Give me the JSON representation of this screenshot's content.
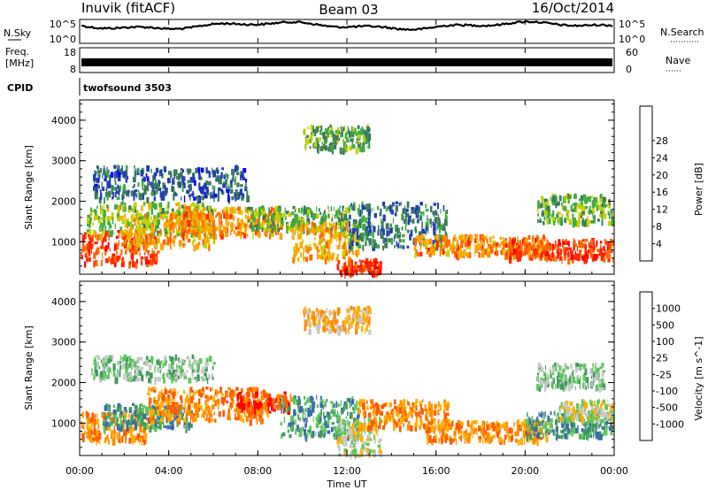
{
  "header": {
    "station": "Inuvik (fitACF)",
    "beam": "Beam 03",
    "date": "16/Oct/2014"
  },
  "top_strip": {
    "nsky_label": "N.Sky",
    "nsky_ticks": [
      "10^5",
      "10^0"
    ],
    "nsearch_label": "N.Search",
    "nsearch_ticks": [
      "10^5",
      "10^0"
    ],
    "freq_label_1": "Freq.",
    "freq_label_2": "[MHz]",
    "freq_ticks": [
      "18",
      "8"
    ],
    "nave_label": "Nave",
    "nave_ticks": [
      "60",
      "0"
    ],
    "cpid_label": "CPID",
    "cpid_value": "twofsound 3503"
  },
  "x_axis": {
    "label": "Time UT",
    "ticks": [
      "00:00",
      "04:00",
      "08:00",
      "12:00",
      "16:00",
      "20:00",
      "00:00"
    ],
    "range_hours": [
      0,
      24
    ]
  },
  "colors": {
    "power_scale": [
      "#0000ff",
      "#1f3faf",
      "#3a7a5a",
      "#3fae3f",
      "#c8d000",
      "#ffa500",
      "#ff6a00",
      "#ff2a00",
      "#ff0000"
    ],
    "velocity_scale": [
      "#ff0000",
      "#ff5a00",
      "#ff8c00",
      "#ffb000",
      "#c8c8c8",
      "#5fc85f",
      "#3f9a5a",
      "#3a6ab0",
      "#1f3fc8"
    ]
  },
  "chart_data": [
    {
      "type": "heatmap",
      "panel": "power",
      "ylabel": "Slant Range [km]",
      "yticks": [
        1000,
        2000,
        3000,
        4000
      ],
      "ylim": [
        200,
        4500
      ],
      "xlim": [
        0,
        24
      ],
      "colorbar_label": "Power [dB]",
      "colorbar_ticks": [
        "4",
        "8",
        "12",
        "16",
        "20",
        "24",
        "28"
      ],
      "colorbar_range": [
        0,
        32
      ],
      "bands": [
        {
          "t0": 0.0,
          "t1": 3.5,
          "r0": 500,
          "r1": 1300,
          "level": 27
        },
        {
          "t0": 0.3,
          "t1": 6.0,
          "r0": 1200,
          "r1": 2000,
          "level": 14
        },
        {
          "t0": 2.0,
          "t1": 6.0,
          "r0": 900,
          "r1": 1700,
          "level": 20
        },
        {
          "t0": 4.5,
          "t1": 9.0,
          "r0": 1200,
          "r1": 1900,
          "level": 22
        },
        {
          "t0": 7.5,
          "t1": 12.0,
          "r0": 1300,
          "r1": 1900,
          "level": 12
        },
        {
          "t0": 9.5,
          "t1": 12.5,
          "r0": 600,
          "r1": 1500,
          "level": 20
        },
        {
          "t0": 11.5,
          "t1": 13.5,
          "r0": 200,
          "r1": 600,
          "level": 28
        },
        {
          "t0": 12.0,
          "t1": 16.5,
          "r0": 900,
          "r1": 2000,
          "level": 8
        },
        {
          "t0": 15.0,
          "t1": 21.0,
          "r0": 700,
          "r1": 1200,
          "level": 22
        },
        {
          "t0": 19.0,
          "t1": 24.0,
          "r0": 600,
          "r1": 1100,
          "level": 27
        },
        {
          "t0": 20.5,
          "t1": 24.0,
          "r0": 1500,
          "r1": 2200,
          "level": 12
        },
        {
          "t0": 0.5,
          "t1": 7.5,
          "r0": 2100,
          "r1": 2900,
          "level": 6
        },
        {
          "t0": 10.0,
          "t1": 13.0,
          "r0": 3300,
          "r1": 3900,
          "level": 12
        }
      ]
    },
    {
      "type": "heatmap",
      "panel": "velocity",
      "ylabel": "Slant Range [km]",
      "yticks": [
        1000,
        2000,
        3000,
        4000
      ],
      "ylim": [
        200,
        4500
      ],
      "xlim": [
        0,
        24
      ],
      "colorbar_label": "Velocity [m s^-1]",
      "colorbar_ticks": [
        "-1000",
        "-500",
        "-100",
        "-25",
        "25",
        "100",
        "500",
        "1000"
      ],
      "bands": [
        {
          "t0": 0.0,
          "t1": 3.0,
          "r0": 600,
          "r1": 1300,
          "level": 2
        },
        {
          "t0": 1.0,
          "t1": 5.0,
          "r0": 900,
          "r1": 1500,
          "level": 6
        },
        {
          "t0": 3.0,
          "t1": 8.5,
          "r0": 1100,
          "r1": 1900,
          "level": 2
        },
        {
          "t0": 7.0,
          "t1": 9.5,
          "r0": 1300,
          "r1": 1800,
          "level": 1
        },
        {
          "t0": 9.0,
          "t1": 12.5,
          "r0": 700,
          "r1": 1700,
          "level": 6
        },
        {
          "t0": 11.5,
          "t1": 13.5,
          "r0": 200,
          "r1": 1200,
          "level": 4
        },
        {
          "t0": 12.5,
          "t1": 16.5,
          "r0": 900,
          "r1": 1600,
          "level": 2
        },
        {
          "t0": 15.5,
          "t1": 21.0,
          "r0": 600,
          "r1": 1100,
          "level": 2
        },
        {
          "t0": 20.0,
          "t1": 24.0,
          "r0": 700,
          "r1": 1300,
          "level": 6
        },
        {
          "t0": 21.5,
          "t1": 24.0,
          "r0": 1100,
          "r1": 1600,
          "level": 4
        },
        {
          "t0": 0.5,
          "t1": 6.0,
          "r0": 2100,
          "r1": 2700,
          "level": 5
        },
        {
          "t0": 10.0,
          "t1": 13.0,
          "r0": 3300,
          "r1": 3900,
          "level": 3
        },
        {
          "t0": 20.5,
          "t1": 23.5,
          "r0": 1900,
          "r1": 2500,
          "level": 5
        }
      ]
    }
  ]
}
